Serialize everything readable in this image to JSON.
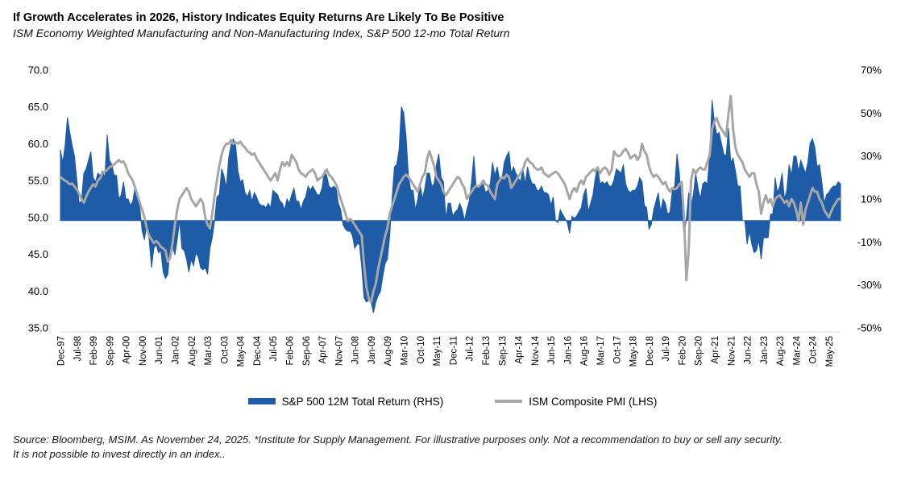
{
  "header": {
    "title": "If Growth Accelerates in 2026, History Indicates Equity Returns Are Likely To Be Positive",
    "subtitle": "ISM Economy Weighted Manufacturing and Non-Manufacturing Index, S&P 500 12-mo Total Return"
  },
  "footer": {
    "line1": "Source: Bloomberg, MSIM. As November 24, 2025. *Institute for Supply Management. For illustrative purposes only. Not a recommendation to buy or sell any security.",
    "line2": "It is not possible to invest directly in an index.."
  },
  "colors": {
    "area_blue": "#1F5CA8",
    "line_gray": "#A6A6A6",
    "axis_line": "#D9D9D9",
    "background": "#FFFFFF"
  },
  "chart_data": {
    "type": "area",
    "subtype": "monthly combo: blue area (right axis, S&P 500 12M total return %) + gray line (left axis, ISM composite PMI)",
    "start_month": "Dec-97",
    "end_month": "Oct-25",
    "x_tick_every_months": 7,
    "x_tick_labels": [
      "Dec-97",
      "Jul-98",
      "Feb-99",
      "Sep-99",
      "Apr-00",
      "Nov-00",
      "Jun-01",
      "Jan-02",
      "Aug-02",
      "Mar-03",
      "Oct-03",
      "May-04",
      "Dec-04",
      "Jul-05",
      "Feb-06",
      "Sep-06",
      "Apr-07",
      "Nov-07",
      "Jun-08",
      "Jan-09",
      "Aug-09",
      "Mar-10",
      "Oct-10",
      "May-11",
      "Dec-11",
      "Jul-12",
      "Feb-13",
      "Sep-13",
      "Apr-14",
      "Nov-14",
      "Jun-15",
      "Jan-16",
      "Aug-16",
      "Mar-17",
      "Oct-17",
      "May-18",
      "Dec-18",
      "Jul-19",
      "Feb-20",
      "Sep-20",
      "Apr-21",
      "Nov-21",
      "Jun-22",
      "Jan-23",
      "Aug-23",
      "Mar-24",
      "Oct-24",
      "May-25"
    ],
    "y_left": {
      "labels": [
        "70.0",
        "65.0",
        "60.0",
        "55.0",
        "50.0",
        "45.0",
        "40.0",
        "35.0"
      ],
      "max": 70,
      "min": 35,
      "grid": false
    },
    "y_right": {
      "labels": [
        "70%",
        "50%",
        "30%",
        "10%",
        "-10%",
        "-30%",
        "-50%"
      ],
      "max": 70,
      "min": -50,
      "grid": false
    },
    "legend_position": "bottom-center",
    "series": [
      {
        "name": "S&P 500 12M Total Return (RHS)",
        "type": "area",
        "axis": "right",
        "color": "#1F5CA8",
        "unit": "%",
        "values": [
          33,
          27,
          35,
          48,
          41,
          35,
          30,
          19,
          8,
          9,
          22,
          24,
          28,
          32,
          20,
          18,
          22,
          21,
          23,
          20,
          40,
          28,
          26,
          21,
          21,
          10,
          12,
          18,
          10,
          10,
          7,
          9,
          16,
          13,
          6,
          -5,
          -9,
          -1,
          -9,
          -22,
          -13,
          -11,
          -15,
          -14,
          -24,
          -27,
          -25,
          -12,
          -12,
          -16,
          -9,
          0,
          -13,
          -14,
          -18,
          -24,
          -18,
          -21,
          -15,
          -17,
          -22,
          -23,
          -22,
          -25,
          -13,
          -8,
          0,
          11,
          12,
          24,
          21,
          15,
          29,
          35,
          38,
          35,
          23,
          18,
          19,
          13,
          11,
          14,
          9,
          13,
          11,
          8,
          7,
          7,
          6,
          8,
          6,
          14,
          13,
          12,
          9,
          8,
          5,
          10,
          8,
          12,
          15,
          9,
          9,
          5,
          9,
          11,
          16,
          14,
          16,
          14,
          12,
          12,
          15,
          23,
          21,
          16,
          15,
          16,
          15,
          8,
          5,
          -2,
          -4,
          -5,
          -5,
          -7,
          -13,
          -11,
          -11,
          -22,
          -36,
          -38,
          -37,
          -38,
          -43,
          -38,
          -35,
          -33,
          -26,
          -20,
          -18,
          -7,
          10,
          25,
          26,
          33,
          53,
          50,
          39,
          21,
          14,
          14,
          5,
          10,
          17,
          10,
          15,
          22,
          22,
          16,
          17,
          26,
          31,
          20,
          18,
          1,
          8,
          8,
          2,
          4,
          5,
          8,
          5,
          0,
          5,
          9,
          18,
          30,
          15,
          16,
          16,
          17,
          13,
          14,
          17,
          27,
          21,
          25,
          19,
          19,
          27,
          30,
          32,
          22,
          25,
          22,
          20,
          18,
          24,
          17,
          25,
          20,
          17,
          17,
          14,
          14,
          16,
          13,
          13,
          12,
          7,
          11,
          0,
          -1,
          5,
          3,
          1,
          -1,
          -6,
          2,
          1,
          2,
          4,
          6,
          12,
          15,
          4,
          8,
          12,
          20,
          25,
          17,
          18,
          17,
          18,
          16,
          16,
          19,
          24,
          23,
          22,
          26,
          17,
          14,
          13,
          14,
          14,
          16,
          20,
          18,
          7,
          6,
          -4,
          -2,
          5,
          9,
          13,
          4,
          10,
          8,
          3,
          4,
          14,
          16,
          31,
          22,
          8,
          -7,
          1,
          13,
          7,
          12,
          22,
          15,
          10,
          17,
          18,
          17,
          31,
          56,
          46,
          40,
          41,
          36,
          31,
          30,
          43,
          27,
          29,
          23,
          16,
          16,
          0,
          0,
          -11,
          -5,
          -11,
          -15,
          -14,
          -9,
          -18,
          -8,
          -8,
          -8,
          3,
          3,
          20,
          13,
          16,
          22,
          10,
          14,
          26,
          21,
          30,
          30,
          23,
          28,
          25,
          22,
          27,
          36,
          38,
          34,
          25,
          26,
          18,
          8,
          12,
          13,
          15,
          16,
          16,
          18,
          17
        ]
      },
      {
        "name": "ISM Composite PMI (LHS)",
        "type": "line",
        "axis": "left",
        "color": "#A6A6A6",
        "unit": "index",
        "values": [
          55.5,
          55.2,
          55.0,
          54.8,
          54.5,
          54.6,
          54.2,
          53.8,
          53.2,
          52.5,
          52.0,
          52.8,
          53.5,
          54.0,
          54.5,
          54.2,
          55.0,
          55.3,
          56.0,
          56.2,
          56.5,
          56.8,
          57.0,
          57.2,
          57.5,
          57.8,
          57.5,
          57.6,
          57.0,
          56.0,
          55.5,
          55.0,
          54.0,
          53.0,
          52.0,
          51.0,
          50.0,
          48.5,
          47.5,
          47.0,
          46.5,
          46.8,
          46.5,
          46.0,
          45.8,
          45.5,
          44.0,
          44.5,
          46.5,
          49.0,
          51.0,
          52.5,
          53.0,
          53.5,
          54.0,
          53.5,
          52.5,
          52.0,
          51.5,
          52.0,
          52.5,
          52.0,
          50.0,
          49.0,
          48.5,
          50.5,
          53.0,
          55.0,
          57.0,
          58.5,
          59.5,
          60.0,
          60.0,
          60.5,
          60.0,
          60.2,
          60.0,
          60.3,
          59.8,
          59.5,
          59.0,
          58.8,
          58.5,
          58.7,
          58.0,
          57.5,
          57.0,
          56.5,
          56.0,
          55.5,
          55.0,
          55.5,
          56.0,
          55.0,
          56.5,
          57.5,
          57.0,
          57.5,
          57.0,
          58.5,
          58.0,
          57.5,
          56.5,
          56.0,
          55.8,
          55.5,
          56.0,
          56.3,
          56.5,
          56.0,
          55.0,
          55.3,
          55.5,
          56.0,
          56.5,
          55.8,
          55.5,
          55.0,
          54.5,
          53.5,
          52.5,
          51.5,
          50.5,
          49.5,
          49.8,
          49.5,
          49.0,
          48.5,
          48.0,
          47.5,
          43.5,
          40.5,
          39.0,
          38.5,
          40.0,
          41.0,
          43.0,
          44.5,
          46.0,
          47.5,
          48.5,
          50.5,
          51.5,
          52.5,
          53.5,
          54.5,
          55.0,
          55.5,
          55.8,
          55.5,
          55.0,
          54.5,
          54.0,
          53.5,
          54.5,
          55.5,
          56.0,
          58.0,
          59.0,
          58.0,
          57.0,
          55.5,
          55.0,
          54.5,
          53.5,
          53.0,
          53.5,
          54.0,
          54.5,
          55.0,
          55.5,
          55.3,
          54.5,
          54.0,
          52.5,
          53.0,
          53.5,
          54.0,
          54.3,
          54.2,
          54.5,
          55.0,
          54.5,
          54.3,
          53.5,
          53.0,
          52.5,
          54.5,
          55.0,
          55.5,
          55.3,
          55.8,
          55.5,
          54.0,
          54.5,
          55.0,
          55.5,
          56.0,
          56.5,
          57.5,
          58.0,
          57.5,
          57.3,
          56.8,
          56.5,
          56.5,
          56.8,
          56.0,
          55.8,
          55.5,
          55.8,
          56.0,
          56.2,
          56.0,
          55.5,
          55.0,
          54.5,
          53.5,
          52.5,
          53.5,
          54.0,
          53.5,
          54.5,
          55.0,
          54.5,
          55.5,
          55.8,
          56.2,
          56.5,
          56.3,
          56.8,
          56.0,
          56.5,
          56.8,
          56.5,
          55.8,
          56.5,
          59.0,
          58.5,
          58.3,
          58.5,
          59.0,
          59.3,
          58.8,
          58.0,
          58.3,
          58.5,
          57.8,
          58.3,
          60.0,
          59.0,
          58.5,
          57.0,
          56.0,
          55.5,
          55.8,
          55.5,
          55.0,
          54.5,
          54.8,
          54.0,
          53.5,
          54.0,
          53.8,
          54.0,
          54.5,
          54.8,
          50.0,
          41.5,
          45.5,
          55.0,
          56.5,
          56.0,
          56.5,
          56.8,
          56.5,
          56.5,
          57.5,
          58.5,
          62.0,
          63.0,
          63.5,
          62.5,
          62.0,
          61.5,
          61.0,
          64.0,
          66.5,
          62.0,
          59.5,
          58.5,
          58.0,
          57.5,
          56.5,
          56.0,
          55.5,
          56.0,
          56.0,
          54.5,
          53.5,
          50.5,
          52.0,
          53.0,
          52.0,
          52.5,
          51.5,
          52.5,
          52.8,
          53.0,
          52.5,
          52.0,
          52.3,
          51.5,
          52.5,
          52.0,
          51.0,
          49.5,
          52.0,
          49.0,
          51.0,
          52.0,
          53.0,
          54.0,
          53.5,
          53.5,
          52.5,
          52.0,
          51.0,
          50.5,
          50.0,
          50.8,
          51.5,
          52.0,
          52.5,
          52.5
        ]
      }
    ]
  }
}
